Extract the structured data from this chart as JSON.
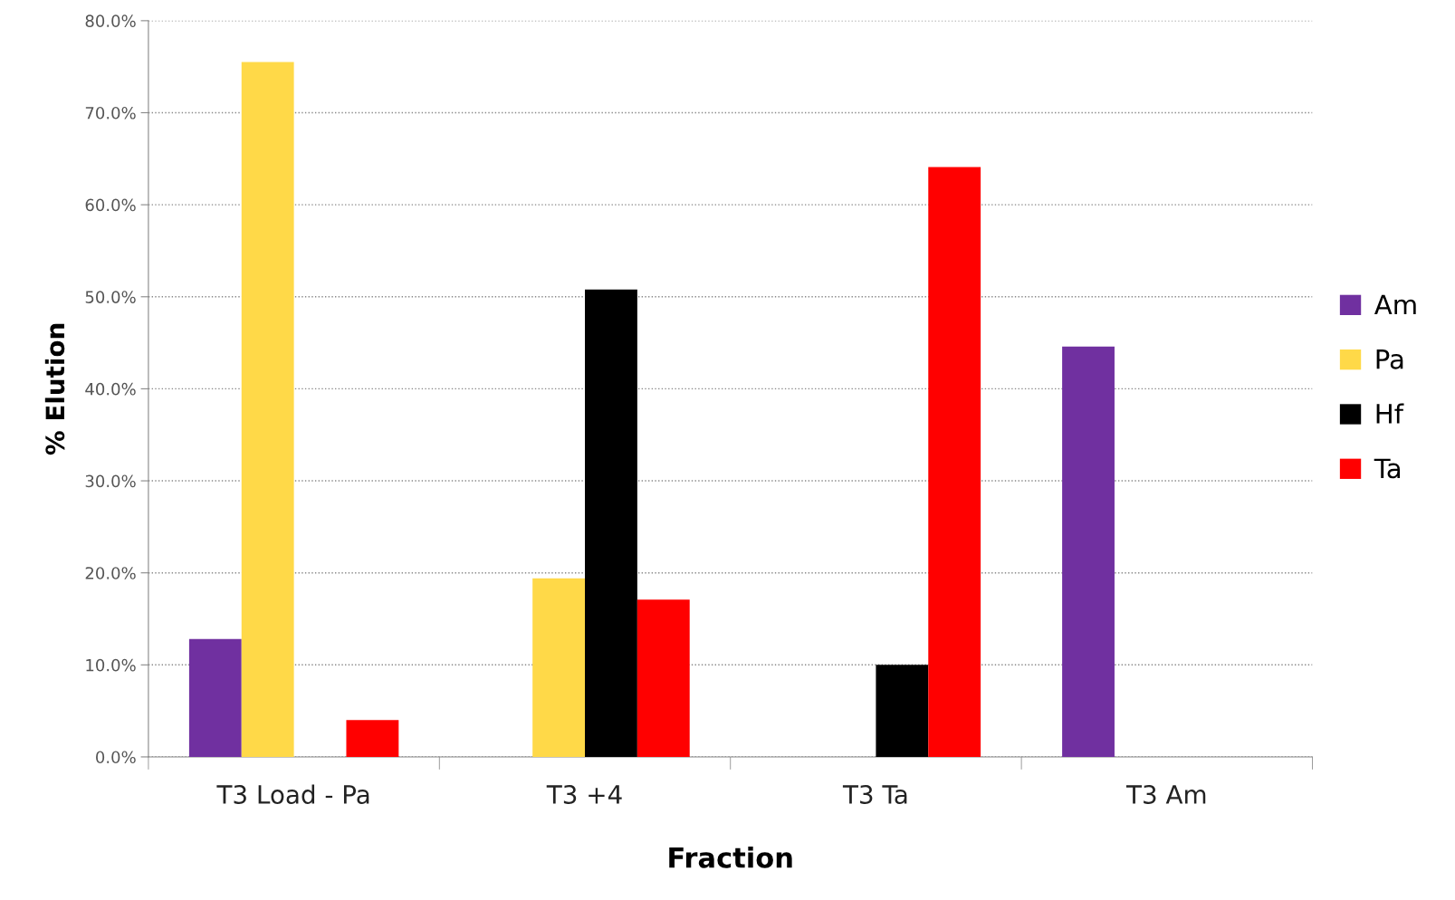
{
  "chart_data": {
    "type": "bar",
    "xlabel": "Fraction",
    "ylabel": "% Elution",
    "categories": [
      "T3 Load - Pa",
      "T3 +4",
      "T3 Ta",
      "T3 Am"
    ],
    "series": [
      {
        "name": "Am",
        "color": "#7030a0",
        "values": [
          12.8,
          0,
          0,
          44.6
        ]
      },
      {
        "name": "Pa",
        "color": "#ffd948",
        "values": [
          75.5,
          19.4,
          0,
          0
        ]
      },
      {
        "name": "Hf",
        "color": "#000000",
        "values": [
          0,
          50.8,
          10.0,
          0
        ]
      },
      {
        "name": "Ta",
        "color": "#ff0000",
        "values": [
          4.0,
          17.1,
          64.1,
          0
        ]
      }
    ],
    "ylim": [
      0,
      80
    ],
    "yticks": [
      {
        "value": 0,
        "label": "0.0%"
      },
      {
        "value": 10,
        "label": "10.0%"
      },
      {
        "value": 20,
        "label": "20.0%"
      },
      {
        "value": 30,
        "label": "30.0%"
      },
      {
        "value": 40,
        "label": "40.0%"
      },
      {
        "value": 50,
        "label": "50.0%"
      },
      {
        "value": 60,
        "label": "60.0%"
      },
      {
        "value": 70,
        "label": "70.0%"
      },
      {
        "value": 80,
        "label": "80.0%"
      }
    ],
    "grid": "y",
    "legend": "right"
  }
}
